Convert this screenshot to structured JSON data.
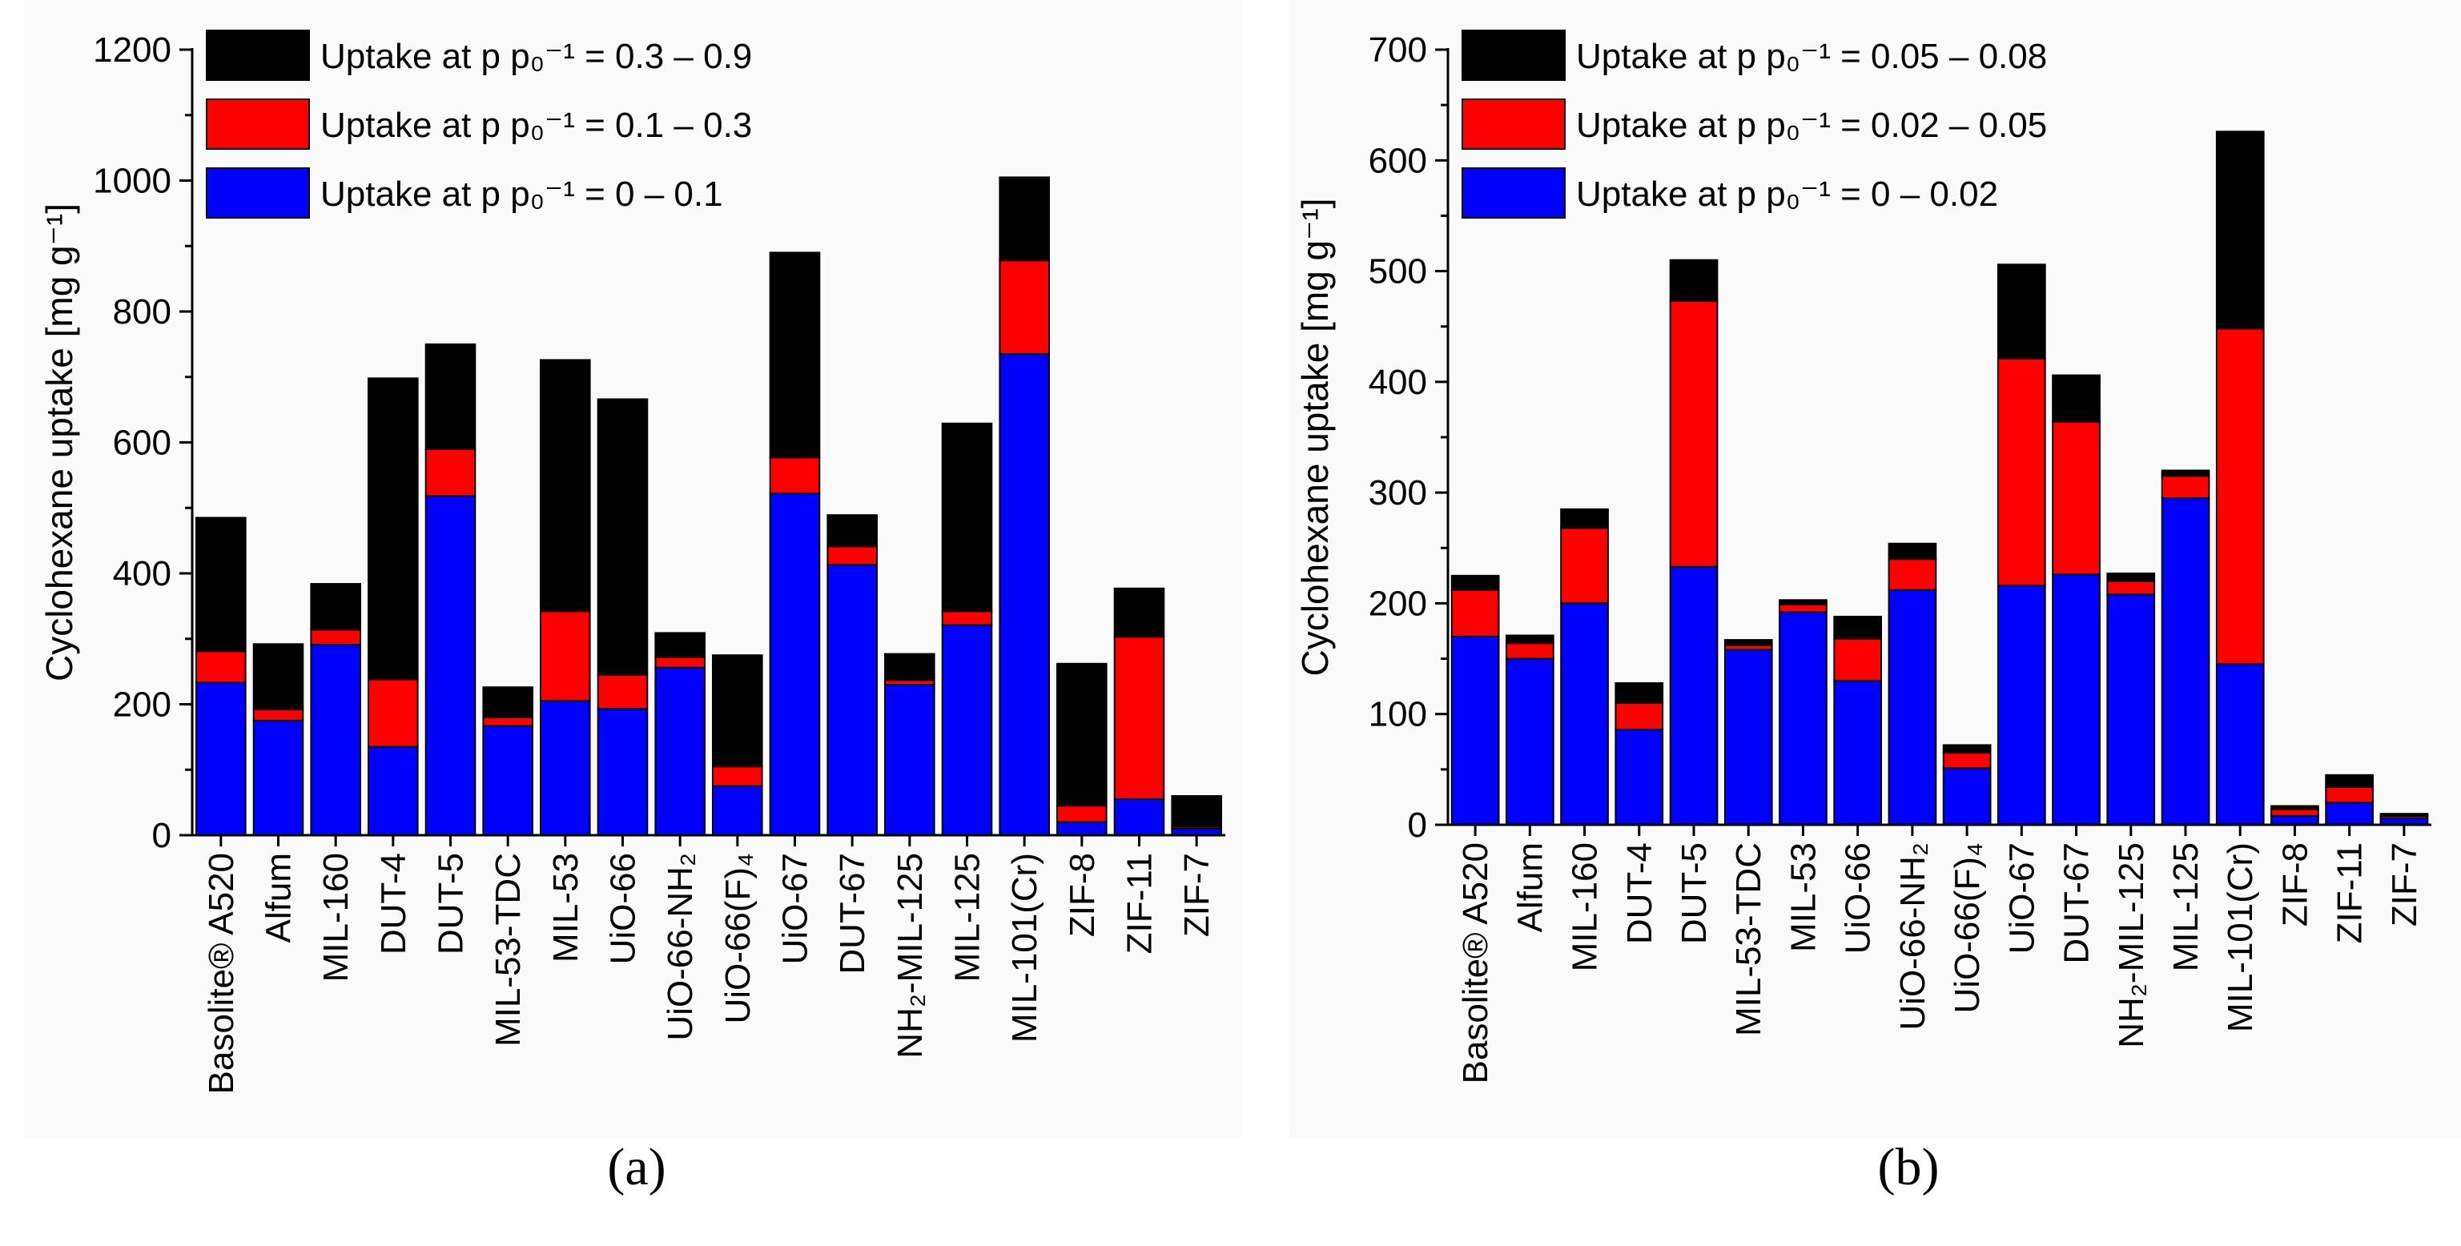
{
  "chart_data": [
    {
      "type": "bar",
      "stacked": true,
      "panel": "a",
      "ylabel": "Cyclohexane uptake [mg g⁻¹]",
      "ylim": [
        0,
        1200
      ],
      "yticks": [
        0,
        200,
        400,
        600,
        800,
        1000,
        1200
      ],
      "categories": [
        "Basolite® A520",
        "Alfum",
        "MIL-160",
        "DUT-4",
        "DUT-5",
        "MIL-53-TDC",
        "MIL-53",
        "UiO-66",
        "UiO-66-NH₂",
        "UiO-66(F)₄",
        "UiO-67",
        "DUT-67",
        "NH₂-MIL-125",
        "MIL-125",
        "MIL-101(Cr)",
        "ZIF-8",
        "ZIF-11",
        "ZIF-7"
      ],
      "series": [
        {
          "name": "Uptake at p p₀⁻¹ = 0 – 0.1",
          "color": "#0000ff",
          "values": [
            233,
            175,
            291,
            135,
            518,
            167,
            205,
            193,
            256,
            75,
            522,
            413,
            230,
            321,
            735,
            20,
            55,
            10
          ]
        },
        {
          "name": "Uptake at p p₀⁻¹ = 0.1 – 0.3",
          "color": "#ff0000",
          "values": [
            48,
            17,
            23,
            103,
            72,
            13,
            137,
            52,
            16,
            30,
            55,
            28,
            7,
            21,
            143,
            25,
            248,
            3
          ]
        },
        {
          "name": "Uptake at p p₀⁻¹ = 0.3 – 0.9",
          "color": "#000000",
          "values": [
            204,
            100,
            70,
            460,
            160,
            46,
            384,
            421,
            37,
            170,
            313,
            48,
            40,
            287,
            127,
            217,
            74,
            47
          ]
        }
      ],
      "legend": "top-left",
      "caption": "(a)"
    },
    {
      "type": "bar",
      "stacked": true,
      "panel": "b",
      "ylabel": "Cyclohexane uptake [mg g⁻¹]",
      "ylim": [
        0,
        700
      ],
      "yticks": [
        0,
        100,
        200,
        300,
        400,
        500,
        600,
        700
      ],
      "categories": [
        "Basolite® A520",
        "Alfum",
        "MIL-160",
        "DUT-4",
        "DUT-5",
        "MIL-53-TDC",
        "MIL-53",
        "UiO-66",
        "UiO-66-NH₂",
        "UiO-66(F)₄",
        "UiO-67",
        "DUT-67",
        "NH₂-MIL-125",
        "MIL-125",
        "MIL-101(Cr)",
        "ZIF-8",
        "ZIF-11",
        "ZIF-7"
      ],
      "series": [
        {
          "name": "Uptake at p p₀⁻¹ = 0 – 0.02",
          "color": "#0000ff",
          "values": [
            170,
            150,
            200,
            86,
            233,
            158,
            192,
            130,
            212,
            51,
            216,
            226,
            208,
            295,
            145,
            8,
            20,
            6
          ]
        },
        {
          "name": "Uptake at p p₀⁻¹ = 0.02 – 0.05",
          "color": "#ff0000",
          "values": [
            42,
            14,
            68,
            24,
            240,
            4,
            7,
            38,
            28,
            14,
            205,
            138,
            12,
            20,
            303,
            6,
            14,
            2
          ]
        },
        {
          "name": "Uptake at p p₀⁻¹ = 0.05 – 0.08",
          "color": "#000000",
          "values": [
            13,
            7,
            17,
            18,
            37,
            5,
            4,
            20,
            14,
            7,
            85,
            42,
            7,
            5,
            178,
            3,
            11,
            2
          ]
        }
      ],
      "legend": "top-left",
      "caption": "(b)"
    }
  ]
}
